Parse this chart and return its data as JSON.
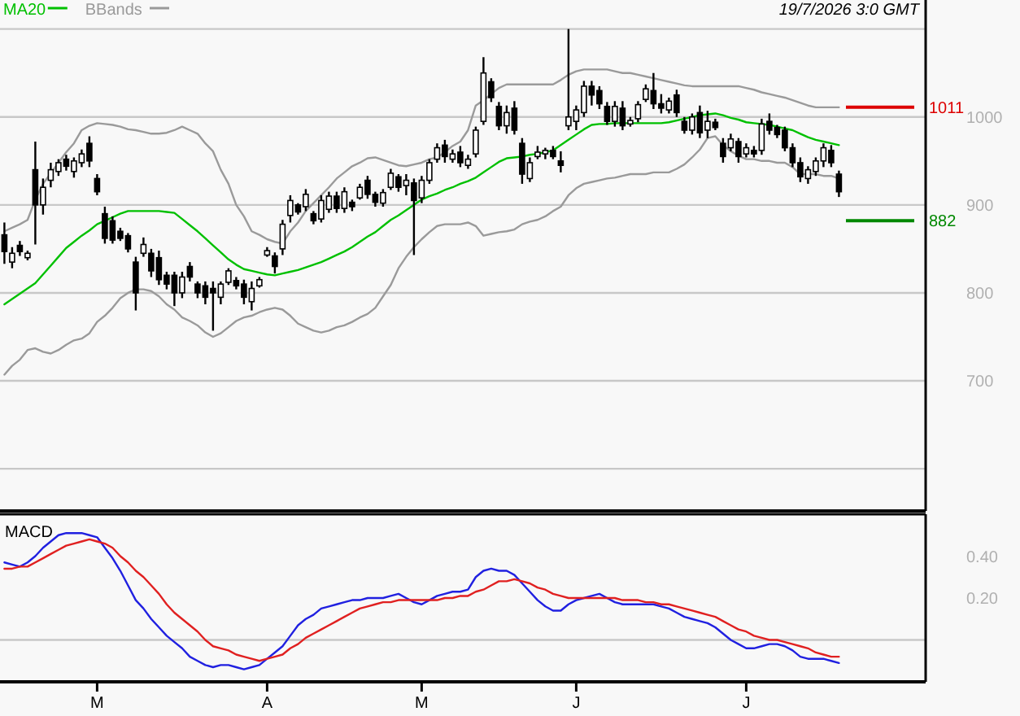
{
  "chart_data": [
    {
      "type": "candlestick",
      "legend": "top left",
      "grid": "y",
      "tick_labels": "y",
      "annotations": [
        "19/7/2026 3:0 GMT"
      ],
      "categories": [
        null,
        null,
        null,
        null,
        null,
        null,
        null,
        null,
        null,
        null,
        null,
        null,
        null,
        null,
        null,
        null,
        null,
        null,
        null,
        null,
        null,
        null,
        null,
        null,
        null,
        null,
        null,
        null,
        null,
        null,
        null,
        null,
        null,
        null,
        null,
        null,
        null,
        null,
        null,
        null,
        null,
        null,
        null,
        null,
        null,
        null,
        null,
        null,
        null,
        null,
        null,
        null,
        null,
        null,
        null,
        null,
        null,
        null,
        null,
        null,
        null,
        null,
        null,
        null,
        null,
        null,
        null,
        null,
        null,
        null,
        null,
        null,
        null,
        null,
        null,
        null,
        null,
        null,
        null,
        null,
        null,
        null,
        null,
        null,
        null,
        null,
        null,
        null,
        null,
        null,
        null,
        null,
        null,
        null,
        null,
        null,
        null,
        null,
        null,
        null,
        null,
        null,
        null,
        null,
        null,
        null,
        null,
        null,
        null
      ],
      "ylim": [
        552,
        1133
      ],
      "yticks": [
        {
          "value": 600,
          "label": null
        },
        700,
        800,
        900,
        1000,
        {
          "value": 1100,
          "label": null
        }
      ],
      "ohlc": [
        [
          866,
          880,
          833,
          847
        ],
        [
          835,
          852,
          828,
          845
        ],
        [
          854,
          859,
          842,
          847
        ],
        [
          840,
          848,
          837,
          845
        ],
        [
          940,
          972,
          855,
          900
        ],
        [
          900,
          930,
          889,
          920
        ],
        [
          928,
          948,
          920,
          940
        ],
        [
          938,
          952,
          933,
          948
        ],
        [
          952,
          957,
          939,
          944
        ],
        [
          938,
          954,
          931,
          950
        ],
        [
          948,
          963,
          943,
          958
        ],
        [
          970,
          978,
          943,
          950
        ],
        [
          930,
          935,
          911,
          915
        ],
        [
          890,
          898,
          856,
          862
        ],
        [
          882,
          887,
          856,
          860
        ],
        [
          870,
          874,
          859,
          862
        ],
        [
          865,
          868,
          846,
          850
        ],
        [
          835,
          841,
          780,
          800
        ],
        [
          845,
          863,
          841,
          855
        ],
        [
          845,
          850,
          818,
          825
        ],
        [
          840,
          848,
          809,
          815
        ],
        [
          820,
          824,
          804,
          810
        ],
        [
          820,
          824,
          785,
          800
        ],
        [
          800,
          824,
          794,
          818
        ],
        [
          830,
          835,
          813,
          818
        ],
        [
          810,
          813,
          794,
          800
        ],
        [
          808,
          813,
          787,
          795
        ],
        [
          805,
          813,
          757,
          800
        ],
        [
          795,
          813,
          787,
          810
        ],
        [
          812,
          828,
          809,
          825
        ],
        [
          814,
          818,
          804,
          808
        ],
        [
          810,
          815,
          787,
          795
        ],
        [
          790,
          813,
          780,
          805
        ],
        [
          808,
          818,
          806,
          815
        ],
        [
          843,
          852,
          841,
          848
        ],
        [
          842,
          846,
          822,
          830
        ],
        [
          850,
          883,
          843,
          878
        ],
        [
          888,
          911,
          880,
          905
        ],
        [
          900,
          902,
          889,
          892
        ],
        [
          898,
          918,
          893,
          912
        ],
        [
          890,
          893,
          878,
          882
        ],
        [
          884,
          911,
          880,
          905
        ],
        [
          895,
          915,
          891,
          910
        ],
        [
          910,
          915,
          891,
          896
        ],
        [
          896,
          920,
          891,
          915
        ],
        [
          903,
          906,
          893,
          898
        ],
        [
          908,
          924,
          906,
          920
        ],
        [
          928,
          933,
          907,
          912
        ],
        [
          912,
          915,
          898,
          903
        ],
        [
          902,
          918,
          898,
          914
        ],
        [
          920,
          941,
          917,
          936
        ],
        [
          932,
          935,
          915,
          920
        ],
        [
          922,
          935,
          911,
          928
        ],
        [
          925,
          930,
          843,
          905
        ],
        [
          908,
          933,
          902,
          928
        ],
        [
          928,
          952,
          924,
          948
        ],
        [
          952,
          970,
          948,
          965
        ],
        [
          968,
          974,
          948,
          955
        ],
        [
          952,
          963,
          948,
          958
        ],
        [
          960,
          967,
          943,
          948
        ],
        [
          945,
          957,
          941,
          952
        ],
        [
          958,
          989,
          954,
          985
        ],
        [
          995,
          1068,
          991,
          1050
        ],
        [
          1040,
          1044,
          1017,
          1022
        ],
        [
          1012,
          1017,
          985,
          990
        ],
        [
          990,
          1013,
          981,
          1005
        ],
        [
          1010,
          1018,
          980,
          985
        ],
        [
          970,
          976,
          924,
          935
        ],
        [
          930,
          954,
          926,
          948
        ],
        [
          955,
          967,
          952,
          960
        ],
        [
          958,
          965,
          952,
          962
        ],
        [
          962,
          967,
          952,
          955
        ],
        [
          950,
          961,
          937,
          945
        ],
        [
          990,
          1100,
          985,
          1000
        ],
        [
          995,
          1013,
          985,
          1008
        ],
        [
          1005,
          1041,
          1000,
          1035
        ],
        [
          1035,
          1041,
          1013,
          1025
        ],
        [
          1030,
          1035,
          1009,
          1015
        ],
        [
          1012,
          1017,
          991,
          995
        ],
        [
          995,
          1018,
          989,
          1012
        ],
        [
          1010,
          1018,
          985,
          990
        ],
        [
          992,
          1000,
          989,
          996
        ],
        [
          998,
          1018,
          994,
          1014
        ],
        [
          1020,
          1037,
          1017,
          1032
        ],
        [
          1030,
          1050,
          1009,
          1015
        ],
        [
          1015,
          1026,
          1004,
          1010
        ],
        [
          1008,
          1022,
          1004,
          1018
        ],
        [
          1025,
          1031,
          1000,
          1005
        ],
        [
          995,
          1000,
          981,
          985
        ],
        [
          985,
          1004,
          980,
          1000
        ],
        [
          1005,
          1013,
          976,
          982
        ],
        [
          985,
          1007,
          976,
          995
        ],
        [
          994,
          998,
          985,
          988
        ],
        [
          970,
          976,
          948,
          955
        ],
        [
          965,
          981,
          961,
          975
        ],
        [
          972,
          976,
          948,
          955
        ],
        [
          958,
          970,
          954,
          965
        ],
        [
          962,
          967,
          954,
          958
        ],
        [
          962,
          998,
          957,
          992
        ],
        [
          995,
          1004,
          980,
          985
        ],
        [
          988,
          991,
          976,
          980
        ],
        [
          985,
          989,
          961,
          965
        ],
        [
          965,
          970,
          943,
          948
        ],
        [
          948,
          954,
          926,
          932
        ],
        [
          930,
          944,
          924,
          940
        ],
        [
          938,
          954,
          933,
          950
        ],
        [
          950,
          970,
          943,
          965
        ],
        [
          962,
          968,
          943,
          948
        ],
        [
          935,
          939,
          909,
          915
        ]
      ],
      "series": [
        {
          "name": "MA20",
          "type": "line",
          "color": "#00c000",
          "values": [
            787,
            793,
            799,
            805,
            811,
            821,
            831,
            841,
            851,
            858,
            865,
            871,
            878,
            882,
            886,
            890,
            893,
            893,
            893,
            893,
            893,
            892,
            891,
            884,
            877,
            870,
            862,
            854,
            846,
            838,
            832,
            827,
            825,
            823,
            821,
            820,
            822,
            824,
            826,
            829,
            832,
            835,
            839,
            843,
            847,
            852,
            858,
            864,
            869,
            876,
            883,
            888,
            894,
            900,
            906,
            910,
            913,
            917,
            920,
            924,
            927,
            931,
            937,
            943,
            949,
            953,
            954,
            955,
            957,
            958,
            960,
            962,
            968,
            974,
            980,
            986,
            991,
            992,
            992,
            993,
            993,
            993,
            993,
            993,
            993,
            993,
            994,
            996,
            998,
            1000,
            1002,
            1003,
            1004,
            1002,
            999,
            997,
            994,
            993,
            992,
            991,
            989,
            987,
            985,
            981,
            977,
            974,
            972,
            970,
            968
          ]
        },
        {
          "name": "BBands",
          "type": "line",
          "color": "#9a9a9a",
          "values": [
            870,
            874,
            878,
            883,
            906,
            924,
            936,
            948,
            960,
            970,
            985,
            990,
            993,
            992,
            991,
            989,
            986,
            985,
            983,
            981,
            981,
            982,
            985,
            989,
            985,
            981,
            970,
            961,
            940,
            924,
            900,
            887,
            870,
            866,
            861,
            858,
            856,
            870,
            880,
            893,
            902,
            911,
            920,
            930,
            937,
            944,
            948,
            953,
            954,
            951,
            948,
            945,
            944,
            946,
            948,
            952,
            954,
            960,
            967,
            972,
            985,
            1013,
            1019,
            1026,
            1033,
            1037,
            1037,
            1037,
            1037,
            1037,
            1037,
            1037,
            1042,
            1048,
            1052,
            1054,
            1054,
            1054,
            1054,
            1052,
            1050,
            1050,
            1048,
            1046,
            1044,
            1042,
            1040,
            1038,
            1036,
            1035,
            1035,
            1035,
            1035,
            1035,
            1035,
            1035,
            1033,
            1031,
            1028,
            1026,
            1024,
            1022,
            1019,
            1016,
            1013,
            1011,
            1011,
            1011,
            1011
          ]
        },
        {
          "type": "line",
          "color": "#9a9a9a",
          "values": [
            707,
            717,
            724,
            735,
            737,
            733,
            731,
            735,
            741,
            746,
            748,
            754,
            767,
            774,
            783,
            794,
            800,
            804,
            804,
            802,
            796,
            787,
            781,
            772,
            768,
            763,
            755,
            750,
            754,
            761,
            768,
            772,
            774,
            778,
            781,
            783,
            781,
            774,
            765,
            761,
            757,
            755,
            757,
            761,
            763,
            767,
            772,
            776,
            783,
            796,
            809,
            828,
            841,
            852,
            861,
            869,
            876,
            878,
            878,
            878,
            880,
            876,
            865,
            867,
            869,
            870,
            872,
            878,
            881,
            883,
            887,
            893,
            898,
            911,
            919,
            924,
            926,
            928,
            930,
            931,
            933,
            935,
            935,
            935,
            937,
            937,
            937,
            941,
            946,
            954,
            963,
            976,
            978,
            968,
            961,
            956,
            952,
            952,
            950,
            950,
            948,
            948,
            943,
            935,
            935,
            935,
            933,
            933,
            930
          ]
        }
      ],
      "ref_lines": [
        {
          "axis": "y",
          "value": 1011,
          "label": "1011",
          "color": "#dd0000"
        },
        {
          "axis": "y",
          "value": 882,
          "label": "882",
          "color": "#008800"
        }
      ]
    },
    {
      "type": "line",
      "title": "MACD",
      "categories": [
        null,
        null,
        null,
        null,
        null,
        null,
        null,
        null,
        null,
        null,
        null,
        null,
        "M",
        null,
        null,
        null,
        null,
        null,
        null,
        null,
        null,
        null,
        null,
        null,
        null,
        null,
        null,
        null,
        null,
        null,
        null,
        null,
        null,
        null,
        "A",
        null,
        null,
        null,
        null,
        null,
        null,
        null,
        null,
        null,
        null,
        null,
        null,
        null,
        null,
        null,
        null,
        null,
        null,
        null,
        "M",
        null,
        null,
        null,
        null,
        null,
        null,
        null,
        null,
        null,
        null,
        null,
        null,
        null,
        null,
        null,
        null,
        null,
        null,
        null,
        "J",
        null,
        null,
        null,
        null,
        null,
        null,
        null,
        null,
        null,
        null,
        null,
        null,
        null,
        null,
        null,
        null,
        null,
        null,
        null,
        null,
        null,
        "J",
        null,
        null,
        null,
        null,
        null,
        null,
        null,
        null,
        null,
        null,
        null,
        null
      ],
      "ylim": [
        -0.2,
        0.6
      ],
      "yticks": [
        {
          "value": 0.2,
          "label": "0.20"
        },
        {
          "value": 0.4,
          "label": "0.40"
        }
      ],
      "ref_lines": [
        {
          "axis": "y",
          "value": 0,
          "color": "#c8c8c8"
        }
      ],
      "series": [
        {
          "color": "#2020e0",
          "values": [
            0.37,
            0.36,
            0.35,
            0.37,
            0.4,
            0.44,
            0.47,
            0.5,
            0.51,
            0.51,
            0.51,
            0.5,
            0.49,
            0.44,
            0.39,
            0.33,
            0.26,
            0.19,
            0.15,
            0.1,
            0.06,
            0.02,
            -0.01,
            -0.04,
            -0.08,
            -0.1,
            -0.12,
            -0.13,
            -0.12,
            -0.12,
            -0.13,
            -0.14,
            -0.13,
            -0.12,
            -0.09,
            -0.06,
            -0.03,
            0.02,
            0.07,
            0.1,
            0.12,
            0.15,
            0.16,
            0.17,
            0.18,
            0.19,
            0.19,
            0.2,
            0.2,
            0.2,
            0.21,
            0.22,
            0.2,
            0.18,
            0.17,
            0.19,
            0.21,
            0.22,
            0.23,
            0.23,
            0.24,
            0.3,
            0.33,
            0.34,
            0.33,
            0.33,
            0.31,
            0.27,
            0.23,
            0.19,
            0.16,
            0.14,
            0.14,
            0.17,
            0.19,
            0.2,
            0.21,
            0.22,
            0.2,
            0.18,
            0.17,
            0.17,
            0.17,
            0.17,
            0.17,
            0.16,
            0.15,
            0.13,
            0.11,
            0.1,
            0.09,
            0.08,
            0.06,
            0.03,
            0.0,
            -0.02,
            -0.04,
            -0.04,
            -0.03,
            -0.02,
            -0.02,
            -0.03,
            -0.05,
            -0.08,
            -0.09,
            -0.09,
            -0.09,
            -0.1,
            -0.11
          ]
        },
        {
          "color": "#e02020",
          "values": [
            0.34,
            0.34,
            0.35,
            0.35,
            0.37,
            0.39,
            0.41,
            0.43,
            0.45,
            0.46,
            0.47,
            0.48,
            0.47,
            0.46,
            0.44,
            0.4,
            0.37,
            0.33,
            0.3,
            0.26,
            0.22,
            0.17,
            0.13,
            0.1,
            0.07,
            0.04,
            0.0,
            -0.03,
            -0.04,
            -0.05,
            -0.07,
            -0.08,
            -0.09,
            -0.1,
            -0.09,
            -0.08,
            -0.07,
            -0.04,
            -0.02,
            0.01,
            0.03,
            0.05,
            0.07,
            0.09,
            0.11,
            0.13,
            0.15,
            0.16,
            0.17,
            0.18,
            0.18,
            0.19,
            0.19,
            0.19,
            0.19,
            0.19,
            0.19,
            0.2,
            0.2,
            0.21,
            0.21,
            0.23,
            0.24,
            0.26,
            0.28,
            0.28,
            0.29,
            0.28,
            0.27,
            0.25,
            0.24,
            0.22,
            0.21,
            0.2,
            0.2,
            0.2,
            0.2,
            0.2,
            0.2,
            0.2,
            0.19,
            0.19,
            0.19,
            0.18,
            0.18,
            0.17,
            0.17,
            0.16,
            0.15,
            0.14,
            0.13,
            0.12,
            0.11,
            0.09,
            0.07,
            0.05,
            0.04,
            0.02,
            0.01,
            0.0,
            0.0,
            -0.01,
            -0.02,
            -0.03,
            -0.04,
            -0.06,
            -0.07,
            -0.08,
            -0.08
          ]
        }
      ]
    }
  ]
}
